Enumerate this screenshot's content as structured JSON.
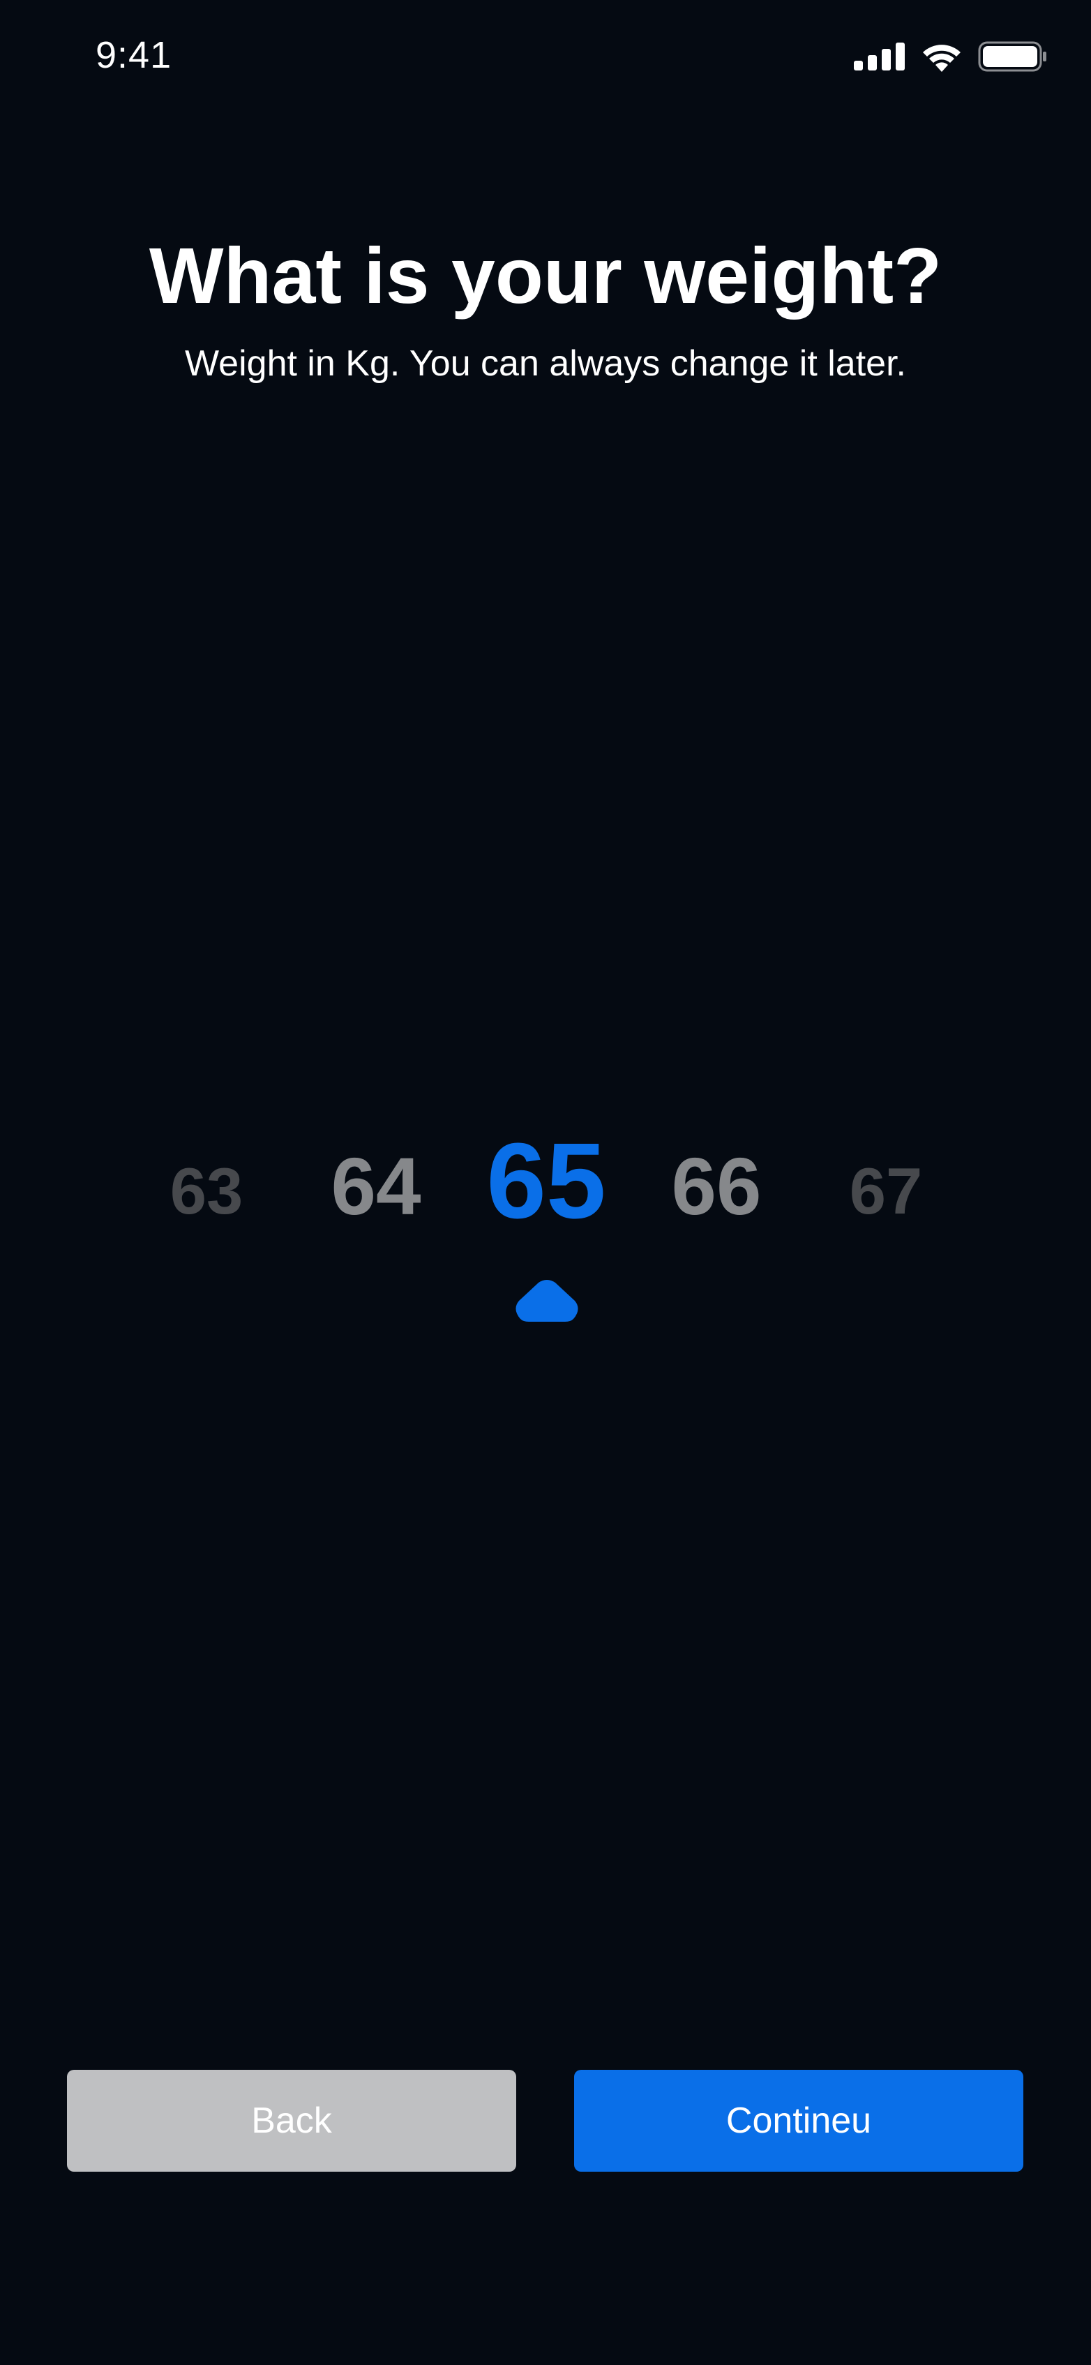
{
  "status_bar": {
    "time": "9:41",
    "icons": [
      "cellular-signal-icon",
      "wifi-icon",
      "battery-icon"
    ]
  },
  "header": {
    "title": "What is your weight?",
    "subtitle": "Weight in Kg. You can always change it later."
  },
  "picker": {
    "values": [
      "63",
      "64",
      "65",
      "66",
      "67"
    ],
    "selected": "65",
    "selected_color": "#0a6fe8"
  },
  "actions": {
    "back_label": "Back",
    "continue_label": "Contineu"
  },
  "colors": {
    "background": "#050a12",
    "accent": "#0a6fe8",
    "back_button": "#bfc0c2"
  }
}
